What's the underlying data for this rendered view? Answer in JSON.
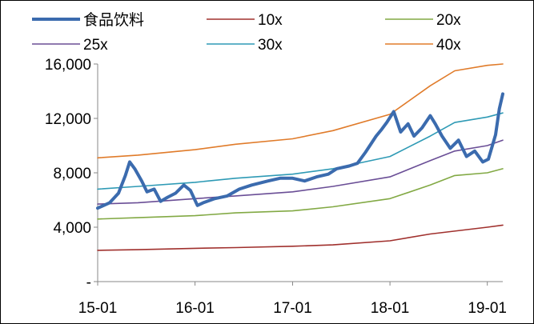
{
  "chart_data": {
    "type": "line",
    "title": "",
    "xlabel": "",
    "ylabel": "",
    "ylim": [
      0,
      16000
    ],
    "y_ticks": [
      0,
      4000,
      8000,
      12000,
      16000
    ],
    "y_tick_labels": [
      "-",
      "4,000",
      "8,000",
      "12,000",
      "16,000"
    ],
    "x_range": [
      "2015-01-01",
      "2019-02-28"
    ],
    "x_ticks": [
      "2015-01-01",
      "2016-01-01",
      "2017-01-01",
      "2018-01-01",
      "2019-01-01"
    ],
    "x_tick_labels": [
      "15-01",
      "16-01",
      "17-01",
      "18-01",
      "19-01"
    ],
    "legend_position": "top",
    "grid": false,
    "series": [
      {
        "name": "食品饮料",
        "color": "#3B6BAE",
        "points": [
          [
            "2015-01-01",
            5400
          ],
          [
            "2015-02-15",
            5800
          ],
          [
            "2015-03-20",
            6500
          ],
          [
            "2015-04-15",
            7800
          ],
          [
            "2015-05-01",
            8800
          ],
          [
            "2015-05-20",
            8300
          ],
          [
            "2015-06-15",
            7400
          ],
          [
            "2015-07-05",
            6600
          ],
          [
            "2015-08-01",
            6800
          ],
          [
            "2015-08-25",
            5900
          ],
          [
            "2015-09-20",
            6200
          ],
          [
            "2015-10-20",
            6500
          ],
          [
            "2015-11-20",
            7100
          ],
          [
            "2015-12-15",
            6700
          ],
          [
            "2016-01-10",
            5600
          ],
          [
            "2016-02-01",
            5800
          ],
          [
            "2016-03-15",
            6100
          ],
          [
            "2016-05-01",
            6300
          ],
          [
            "2016-06-15",
            6800
          ],
          [
            "2016-08-01",
            7100
          ],
          [
            "2016-10-01",
            7400
          ],
          [
            "2016-11-15",
            7600
          ],
          [
            "2017-01-01",
            7600
          ],
          [
            "2017-02-15",
            7400
          ],
          [
            "2017-04-01",
            7700
          ],
          [
            "2017-05-15",
            7900
          ],
          [
            "2017-06-15",
            8300
          ],
          [
            "2017-08-01",
            8500
          ],
          [
            "2017-09-01",
            8700
          ],
          [
            "2017-10-01",
            9500
          ],
          [
            "2017-11-10",
            10700
          ],
          [
            "2017-12-01",
            11200
          ],
          [
            "2017-12-20",
            11700
          ],
          [
            "2018-01-15",
            12500
          ],
          [
            "2018-02-10",
            11000
          ],
          [
            "2018-03-10",
            11600
          ],
          [
            "2018-04-01",
            10700
          ],
          [
            "2018-05-01",
            11300
          ],
          [
            "2018-06-01",
            12200
          ],
          [
            "2018-06-20",
            11600
          ],
          [
            "2018-07-15",
            10700
          ],
          [
            "2018-08-15",
            9800
          ],
          [
            "2018-09-15",
            10400
          ],
          [
            "2018-10-15",
            9200
          ],
          [
            "2018-11-15",
            9600
          ],
          [
            "2018-12-15",
            8800
          ],
          [
            "2019-01-05",
            9000
          ],
          [
            "2019-02-01",
            10800
          ],
          [
            "2019-02-15",
            12700
          ],
          [
            "2019-02-28",
            13800
          ]
        ]
      },
      {
        "name": "10x",
        "color": "#A0302D",
        "points": [
          [
            "2015-01-01",
            2300
          ],
          [
            "2015-06-01",
            2350
          ],
          [
            "2016-01-01",
            2450
          ],
          [
            "2016-06-01",
            2500
          ],
          [
            "2017-01-01",
            2600
          ],
          [
            "2017-06-01",
            2700
          ],
          [
            "2018-01-01",
            3000
          ],
          [
            "2018-06-01",
            3500
          ],
          [
            "2019-01-01",
            4000
          ],
          [
            "2019-02-28",
            4150
          ]
        ]
      },
      {
        "name": "20x",
        "color": "#82A944",
        "points": [
          [
            "2015-01-01",
            4600
          ],
          [
            "2015-06-01",
            4700
          ],
          [
            "2016-01-01",
            4850
          ],
          [
            "2016-06-01",
            5050
          ],
          [
            "2017-01-01",
            5200
          ],
          [
            "2017-06-01",
            5500
          ],
          [
            "2018-01-01",
            6100
          ],
          [
            "2018-06-01",
            7100
          ],
          [
            "2018-09-01",
            7800
          ],
          [
            "2019-01-01",
            8000
          ],
          [
            "2019-02-28",
            8300
          ]
        ]
      },
      {
        "name": "25x",
        "color": "#6A4E96",
        "points": [
          [
            "2015-01-01",
            5700
          ],
          [
            "2015-06-01",
            5800
          ],
          [
            "2016-01-01",
            6100
          ],
          [
            "2016-06-01",
            6300
          ],
          [
            "2017-01-01",
            6600
          ],
          [
            "2017-06-01",
            7000
          ],
          [
            "2018-01-01",
            7700
          ],
          [
            "2018-06-01",
            8900
          ],
          [
            "2018-09-01",
            9600
          ],
          [
            "2019-01-01",
            10000
          ],
          [
            "2019-02-28",
            10400
          ]
        ]
      },
      {
        "name": "30x",
        "color": "#2E9AB5",
        "points": [
          [
            "2015-01-01",
            6800
          ],
          [
            "2015-06-01",
            7000
          ],
          [
            "2016-01-01",
            7300
          ],
          [
            "2016-06-01",
            7600
          ],
          [
            "2017-01-01",
            7900
          ],
          [
            "2017-06-01",
            8300
          ],
          [
            "2018-01-01",
            9200
          ],
          [
            "2018-06-01",
            10700
          ],
          [
            "2018-09-01",
            11700
          ],
          [
            "2019-01-01",
            12100
          ],
          [
            "2019-02-28",
            12400
          ]
        ]
      },
      {
        "name": "40x",
        "color": "#E07B2A",
        "points": [
          [
            "2015-01-01",
            9100
          ],
          [
            "2015-06-01",
            9300
          ],
          [
            "2016-01-01",
            9700
          ],
          [
            "2016-06-01",
            10100
          ],
          [
            "2017-01-01",
            10500
          ],
          [
            "2017-06-01",
            11100
          ],
          [
            "2018-01-01",
            12300
          ],
          [
            "2018-06-01",
            14400
          ],
          [
            "2018-09-01",
            15500
          ],
          [
            "2019-01-01",
            15900
          ],
          [
            "2019-02-28",
            16000
          ]
        ]
      }
    ]
  }
}
